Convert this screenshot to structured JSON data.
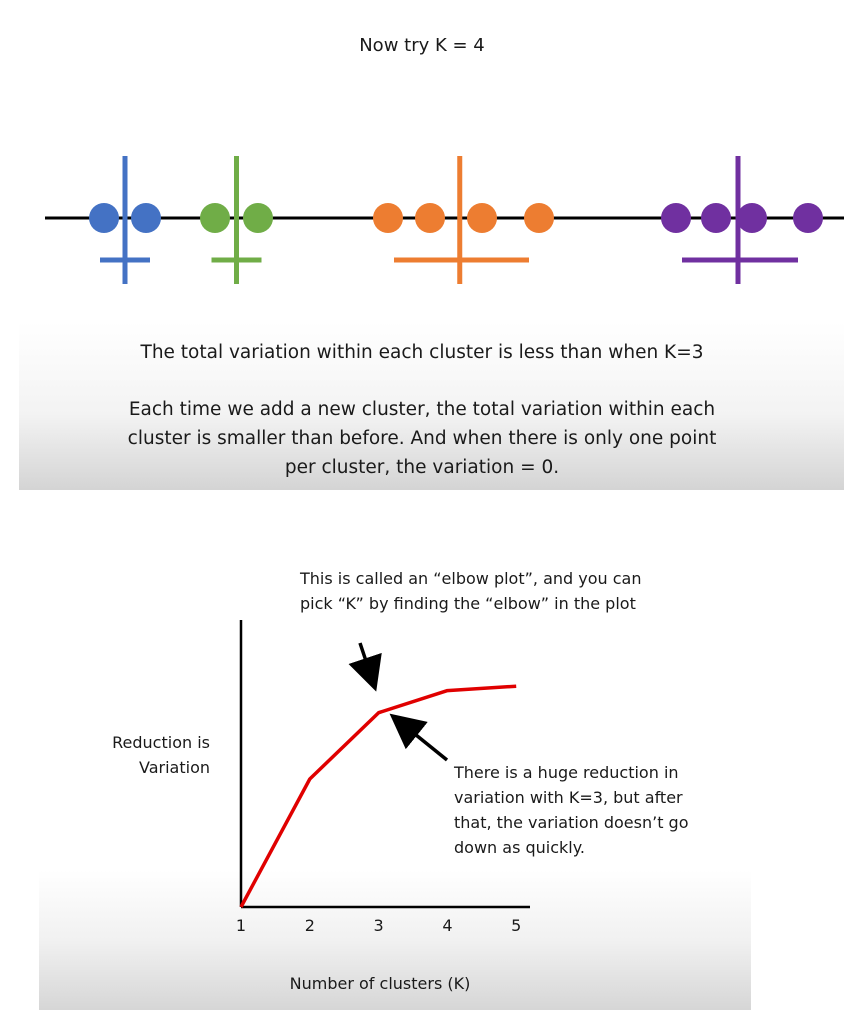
{
  "top": {
    "title": "Now try K = 4",
    "caption_line1": "The total variation within each cluster is less than when K=3",
    "caption_para2_l1": "Each time we add a new cluster, the total variation within each",
    "caption_para2_l2": "cluster is smaller than before. And when there is only one point",
    "caption_para2_l3": "per cluster, the variation = 0."
  },
  "clusters": [
    {
      "color": "#4472c4",
      "points": [
        1,
        2
      ]
    },
    {
      "color": "#70ad47",
      "points": [
        3,
        4
      ]
    },
    {
      "color": "#ed7d31",
      "points": [
        5,
        6,
        7,
        8
      ]
    },
    {
      "color": "#7030a0",
      "points": [
        9,
        10,
        11,
        12
      ]
    }
  ],
  "cluster_colors": {
    "blue": "#4472c4",
    "green": "#70ad47",
    "orange": "#ed7d31",
    "purple": "#7030a0"
  },
  "bottom": {
    "annot_elbow_l1": "This is called an “elbow plot”, and you can",
    "annot_elbow_l2": "pick “K” by finding the “elbow” in the plot",
    "annot_reduction_l1": "There is a huge reduction in",
    "annot_reduction_l2": "variation with K=3, but after",
    "annot_reduction_l3": "that, the variation doesn’t go",
    "annot_reduction_l4": "down as quickly.",
    "ylabel_l1": "Reduction is",
    "ylabel_l2": "Variation",
    "xlabel": "Number of clusters (K)"
  },
  "chart_data": {
    "type": "line",
    "x": [
      1,
      2,
      3,
      4,
      5
    ],
    "series": [
      {
        "values": [
          0,
          0.58,
          0.88,
          0.98,
          1.0
        ]
      }
    ],
    "xticks": [
      "1",
      "2",
      "3",
      "4",
      "5"
    ],
    "xlabel": "Number of clusters (K)",
    "ylabel": "Reduction is Variation",
    "xlim": [
      1,
      5.2
    ],
    "ylim": [
      0,
      1.3
    ],
    "line_color": "#e00000"
  }
}
